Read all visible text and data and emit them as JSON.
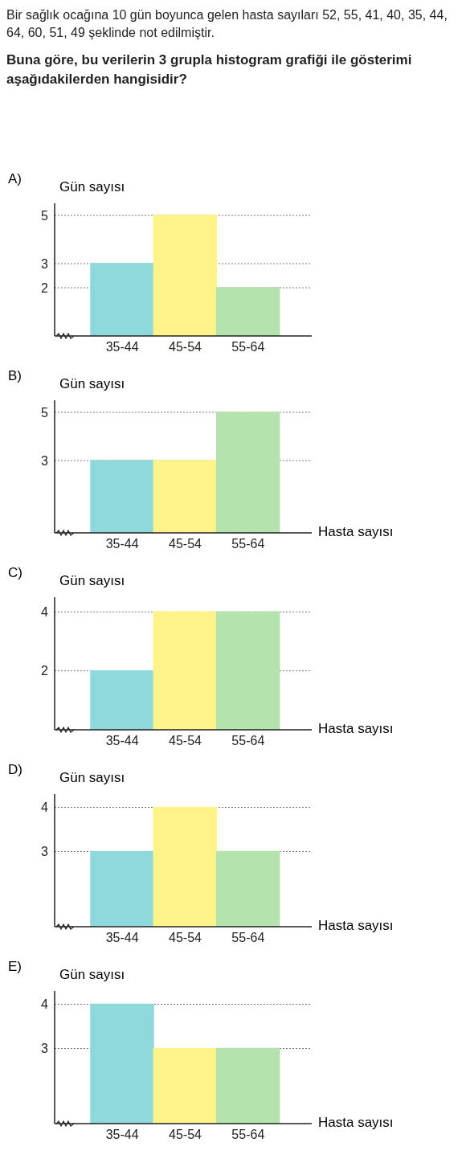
{
  "chart_data": [
    {
      "type": "other",
      "title": "Buna göre, bu verilerin 3 grupla histogram grafiği ile gösterimi aşağıdakilerden hangisidir?",
      "annotations": [
        "Bir sağlık ocağına 10 gün boyunca gelen hasta sayıları 52, 55, 41, 40, 35, 44, 64, 60, 51, 49 şeklinde not edilmiştir."
      ]
    },
    {
      "type": "bar",
      "annotations": [
        "A)"
      ],
      "ylabel": "Gün sayısı",
      "categories": [
        "35-44",
        "45-54",
        "55-64"
      ],
      "values": [
        3,
        5,
        2
      ],
      "colors": [
        "#8fd8dc",
        "#fff38a",
        "#b5e3ad"
      ],
      "ylim": [
        0,
        5.5
      ],
      "yticks": [
        2,
        3,
        5
      ],
      "grid": "y"
    },
    {
      "type": "bar",
      "annotations": [
        "B)"
      ],
      "ylabel": "Gün sayısı",
      "xlabel": "Hasta sayısı",
      "categories": [
        "35-44",
        "45-54",
        "55-64"
      ],
      "values": [
        3,
        3,
        5
      ],
      "colors": [
        "#8fd8dc",
        "#fff38a",
        "#b5e3ad"
      ],
      "ylim": [
        0,
        5.5
      ],
      "yticks": [
        3,
        5
      ],
      "grid": "y"
    },
    {
      "type": "bar",
      "annotations": [
        "C)"
      ],
      "ylabel": "Gün sayısı",
      "xlabel": "Hasta sayısı",
      "categories": [
        "35-44",
        "45-54",
        "55-64"
      ],
      "values": [
        2,
        4,
        4
      ],
      "colors": [
        "#8fd8dc",
        "#fff38a",
        "#b5e3ad"
      ],
      "ylim": [
        0,
        4.5
      ],
      "yticks": [
        2,
        4
      ],
      "grid": "y"
    },
    {
      "type": "bar",
      "annotations": [
        "D)"
      ],
      "ylabel": "Gün sayısı",
      "xlabel": "Hasta sayısı",
      "categories": [
        "35-44",
        "45-54",
        "55-64"
      ],
      "values": [
        3,
        4,
        3
      ],
      "colors": [
        "#8fd8dc",
        "#fff38a",
        "#b5e3ad"
      ],
      "ylim": [
        1.3,
        4.3
      ],
      "yticks": [
        3,
        4
      ],
      "grid": "y"
    },
    {
      "type": "bar",
      "annotations": [
        "E)"
      ],
      "ylabel": "Gün sayısı",
      "xlabel": "Hasta sayısı",
      "categories": [
        "35-44",
        "45-54",
        "55-64"
      ],
      "values": [
        4,
        3,
        3
      ],
      "colors": [
        "#8fd8dc",
        "#fff38a",
        "#b5e3ad"
      ],
      "ylim": [
        1.3,
        4.3
      ],
      "yticks": [
        3,
        4
      ],
      "grid": "y"
    }
  ]
}
